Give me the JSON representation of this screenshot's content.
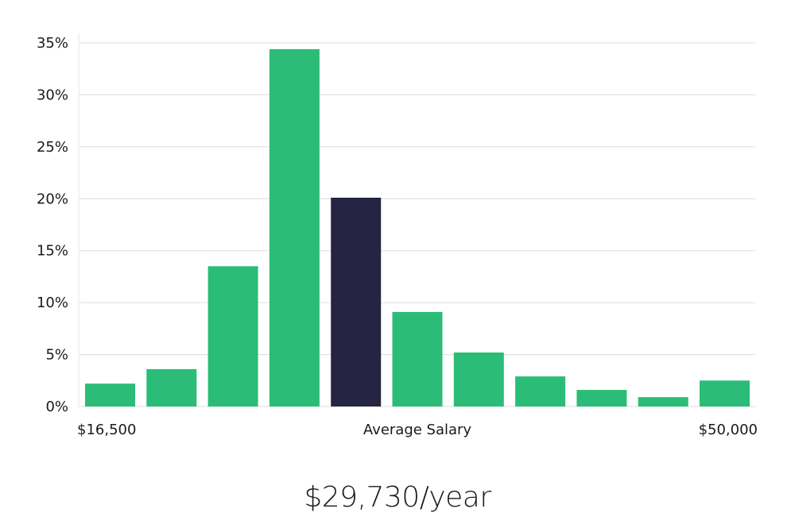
{
  "summary": "$29,730/year",
  "colors": {
    "bar": "#2bbd77",
    "highlight": "#262443"
  },
  "chart_data": {
    "type": "bar",
    "title": "",
    "ylabel": "",
    "ylim": [
      0,
      35
    ],
    "yticks": [
      0,
      5,
      10,
      15,
      20,
      25,
      30,
      35
    ],
    "ytick_labels": [
      "0%",
      "5%",
      "10%",
      "15%",
      "20%",
      "25%",
      "30%",
      "35%"
    ],
    "grid": true,
    "x_range": [
      "$16,500",
      "$50,000"
    ],
    "x_labels": {
      "left": "$16,500",
      "center": "Average Salary",
      "right": "$50,000"
    },
    "categories": [
      "1",
      "2",
      "3",
      "4",
      "5",
      "6",
      "7",
      "8",
      "9",
      "10",
      "11"
    ],
    "values": [
      2.2,
      3.6,
      13.5,
      34.4,
      20.1,
      9.1,
      5.2,
      2.9,
      1.6,
      0.9,
      2.5
    ],
    "highlight_index": 4
  }
}
